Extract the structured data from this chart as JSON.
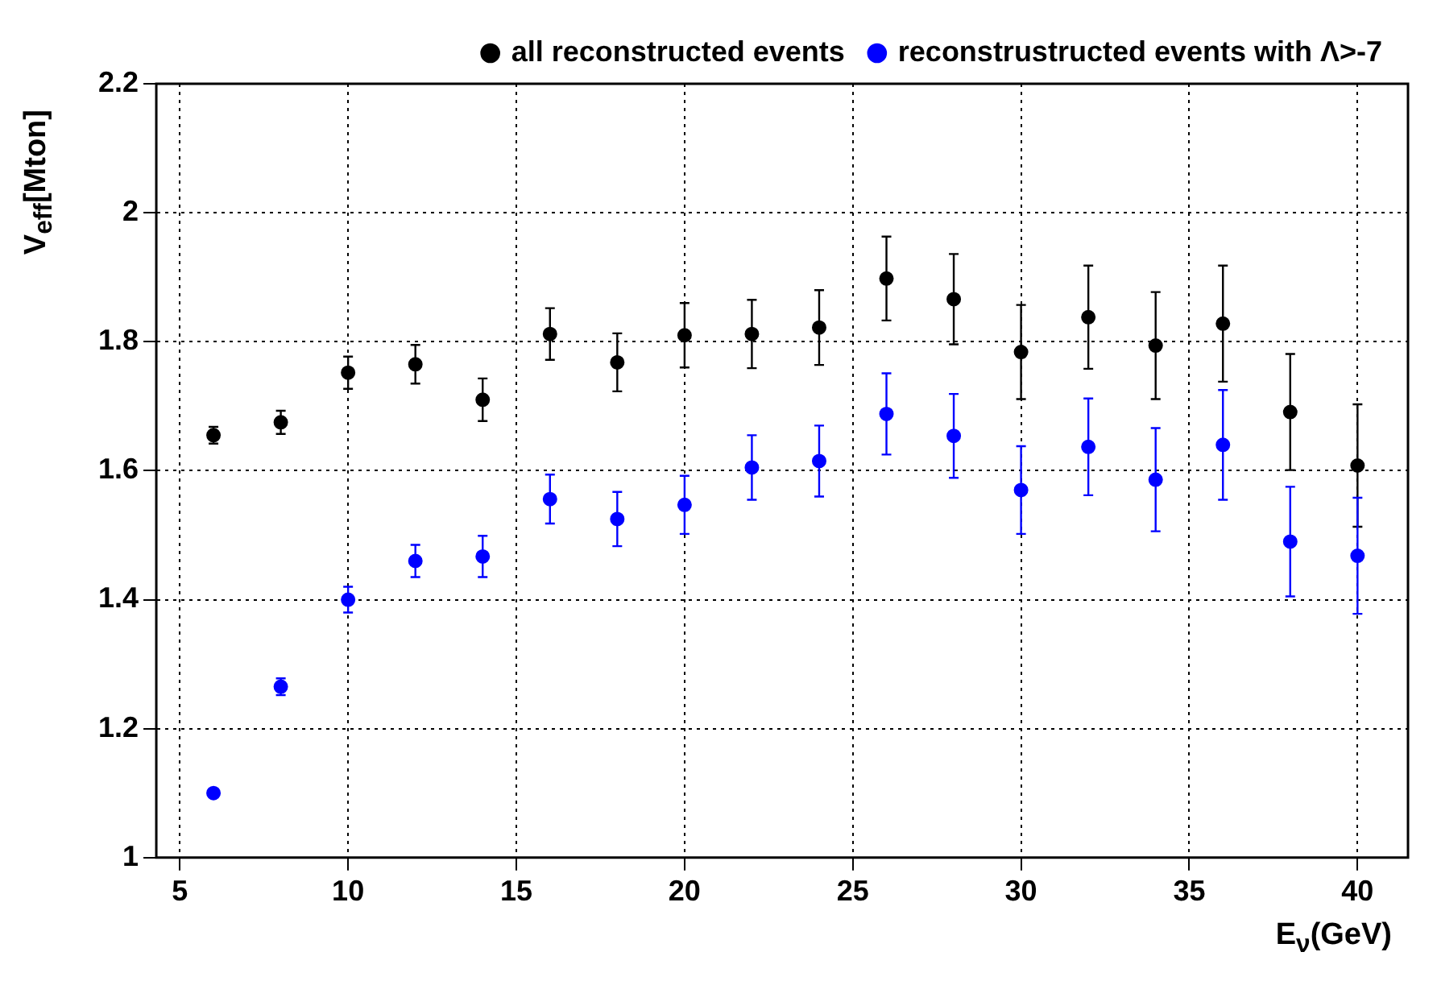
{
  "chart_data": {
    "type": "scatter",
    "xlabel": "E$_{ν}$(GeV)",
    "ylabel": "V$_{eff}$[Mton]",
    "x": [
      6,
      8,
      10,
      12,
      14,
      16,
      18,
      20,
      22,
      24,
      26,
      28,
      30,
      32,
      34,
      36,
      38,
      40
    ],
    "xlim": [
      4.3,
      41.5
    ],
    "xticks": [
      5,
      10,
      15,
      20,
      25,
      30,
      35,
      40
    ],
    "ylim": [
      1,
      2.2
    ],
    "yticks": [
      1,
      1.2,
      1.4,
      1.6,
      1.8,
      2,
      2.2
    ],
    "grid": true,
    "legend": "top right",
    "marker": "circle",
    "series": [
      {
        "name": "all reconstructed events",
        "color": "#000000",
        "values": [
          1.655,
          1.675,
          1.752,
          1.765,
          1.71,
          1.812,
          1.768,
          1.81,
          1.812,
          1.822,
          1.898,
          1.866,
          1.784,
          1.838,
          1.794,
          1.828,
          1.691,
          1.608
        ],
        "errors": [
          0.013,
          0.018,
          0.025,
          0.03,
          0.033,
          0.04,
          0.045,
          0.05,
          0.053,
          0.058,
          0.065,
          0.07,
          0.073,
          0.08,
          0.083,
          0.09,
          0.09,
          0.095
        ]
      },
      {
        "name": "reconstrustructed events with Λ>-7",
        "color": "#0000ff",
        "values": [
          1.1,
          1.265,
          1.4,
          1.46,
          1.467,
          1.556,
          1.525,
          1.547,
          1.605,
          1.615,
          1.688,
          1.654,
          1.57,
          1.637,
          1.586,
          1.64,
          1.49,
          1.468
        ],
        "errors": [
          null,
          0.013,
          0.02,
          0.025,
          0.032,
          0.038,
          0.042,
          0.045,
          0.05,
          0.055,
          0.063,
          0.065,
          0.068,
          0.075,
          0.08,
          0.085,
          0.085,
          0.09
        ]
      }
    ]
  }
}
